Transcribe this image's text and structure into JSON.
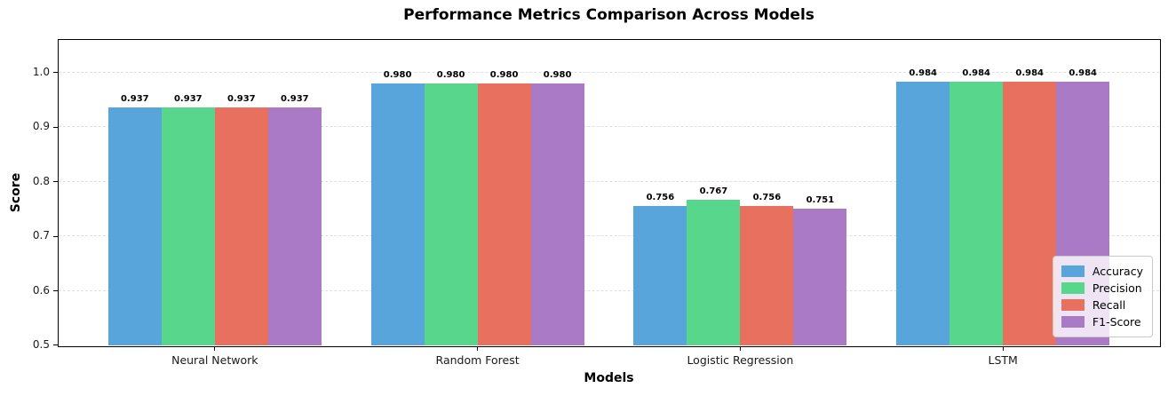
{
  "title": "Performance Metrics Comparison Across Models",
  "chart_data": {
    "type": "bar",
    "title": "Performance Metrics Comparison Across Models",
    "xlabel": "Models",
    "ylabel": "Score",
    "ylim": [
      0.5,
      1.06
    ],
    "yticks": [
      0.5,
      0.6,
      0.7,
      0.8,
      0.9,
      1.0
    ],
    "grid": "horizontal-dashed",
    "legend_position": "lower-right",
    "bar_value_labels": true,
    "label_decimals": 3,
    "categories": [
      "Neural Network",
      "Random Forest",
      "Logistic Regression",
      "LSTM"
    ],
    "series": [
      {
        "name": "Accuracy",
        "color": "#58a5dc",
        "values": [
          0.937,
          0.98,
          0.756,
          0.984
        ]
      },
      {
        "name": "Precision",
        "color": "#57d68c",
        "values": [
          0.937,
          0.98,
          0.767,
          0.984
        ]
      },
      {
        "name": "Recall",
        "color": "#e8705f",
        "values": [
          0.937,
          0.98,
          0.756,
          0.984
        ]
      },
      {
        "name": "F1-Score",
        "color": "#aa7ac6",
        "values": [
          0.937,
          0.98,
          0.751,
          0.984
        ]
      }
    ]
  }
}
